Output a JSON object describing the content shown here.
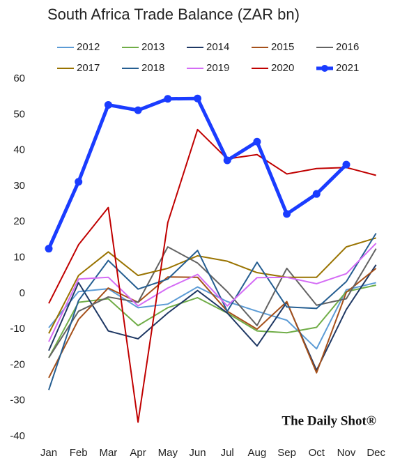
{
  "chart_data": {
    "type": "line",
    "title": "South Africa Trade Balance (ZAR bn)",
    "annotation": "The Daily Shot®",
    "categories": [
      "Jan",
      "Feb",
      "Mar",
      "Apr",
      "May",
      "Jun",
      "Jul",
      "Aug",
      "Sep",
      "Oct",
      "Nov",
      "Dec"
    ],
    "ylim": [
      -40,
      60
    ],
    "yticks": [
      -40,
      -30,
      -20,
      -10,
      0,
      10,
      20,
      30,
      40,
      50,
      60
    ],
    "grid": false,
    "series": [
      {
        "name": "2012",
        "color": "#5b9bd5",
        "line_width": 2,
        "values": [
          -9.6,
          0.5,
          1.3,
          -4,
          -3,
          1.8,
          -2.3,
          -5,
          -7.5,
          -15.5,
          1,
          3
        ]
      },
      {
        "name": "2013",
        "color": "#70ad47",
        "line_width": 2,
        "values": [
          -18,
          -2.5,
          -1.5,
          -9,
          -4,
          -1.2,
          -5.5,
          -10.5,
          -11,
          -9.5,
          0.5,
          2.3
        ]
      },
      {
        "name": "2014",
        "color": "#1f3864",
        "line_width": 2,
        "values": [
          -16,
          3,
          -10.5,
          -12.7,
          -5.5,
          0.8,
          -5.5,
          -14.7,
          -2.5,
          -21.5,
          -4.5,
          8
        ]
      },
      {
        "name": "2015",
        "color": "#a5501a",
        "line_width": 2,
        "values": [
          -23.6,
          -7.3,
          1.5,
          -2.5,
          4.6,
          4.5,
          -5,
          -10,
          -2.3,
          -22.2,
          0.3,
          7
        ]
      },
      {
        "name": "2016",
        "color": "#636363",
        "line_width": 2,
        "values": [
          -18,
          -5,
          -1,
          -2.5,
          13,
          8.5,
          0.5,
          -9,
          7,
          -3.3,
          -1.5,
          12.5
        ]
      },
      {
        "name": "2017",
        "color": "#997300",
        "line_width": 2,
        "values": [
          -11.2,
          5,
          11.6,
          5,
          7,
          10.5,
          9,
          5.8,
          4.5,
          4.5,
          13,
          15.5
        ]
      },
      {
        "name": "2018",
        "color": "#255e91",
        "line_width": 2,
        "values": [
          -27,
          -2,
          9.2,
          1.2,
          4,
          12,
          -5,
          8.7,
          -3.8,
          -4.2,
          3.3,
          16.8
        ]
      },
      {
        "name": "2019",
        "color": "#d46cf5",
        "line_width": 2,
        "values": [
          -13.5,
          4,
          4.5,
          -3.5,
          1.5,
          5.3,
          -3.5,
          4.4,
          4.5,
          2.7,
          5.5,
          14
        ]
      },
      {
        "name": "2020",
        "color": "#c00000",
        "line_width": 2,
        "values": [
          -2.8,
          13.6,
          24,
          -36,
          19.8,
          45.8,
          37.6,
          38.8,
          33.4,
          34.9,
          35.2,
          33
        ]
      },
      {
        "name": "2021",
        "color": "#1a3cff",
        "line_width": 5,
        "marker": "circle",
        "values": [
          12.5,
          31.2,
          52.7,
          51.2,
          54.4,
          54.5,
          37.2,
          42.4,
          22.2,
          27.8,
          36,
          null
        ]
      }
    ]
  }
}
